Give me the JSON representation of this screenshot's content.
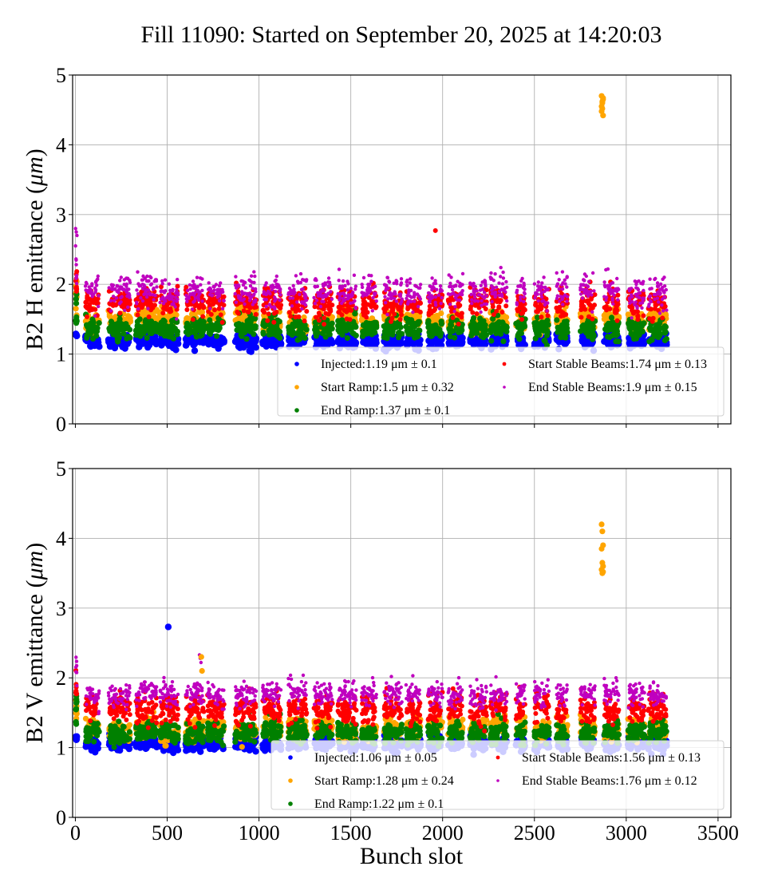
{
  "title": "Fill 11090: Started on September 20, 2025 at 14:20:03",
  "chart_data": [
    {
      "type": "scatter",
      "panel": "top",
      "ylabel": "B2 H emittance (μm)",
      "ylabel_plain": "B2 H emittance (",
      "ylabel_unit": "μm",
      "xlabel": "",
      "xlim": [
        -15,
        3570
      ],
      "ylim": [
        0,
        5
      ],
      "xticks": [
        0,
        500,
        1000,
        1500,
        2000,
        2500,
        3000,
        3500
      ],
      "xtick_labels_shown": false,
      "yticks": [
        0,
        1,
        2,
        3,
        4,
        5
      ],
      "grid": true,
      "legend_placement": "lower-right",
      "legend_columns": 2,
      "series": [
        {
          "name": "Injected",
          "mean": 1.19,
          "std": 0.1,
          "color": "#0000ff",
          "label": "Injected:1.19 μm ± 0.1"
        },
        {
          "name": "Start Ramp",
          "mean": 1.5,
          "std": 0.32,
          "color": "#ffa500",
          "label": "Start Ramp:1.5 μm ± 0.32"
        },
        {
          "name": "End Ramp",
          "mean": 1.37,
          "std": 0.1,
          "color": "#008000",
          "label": "End Ramp:1.37 μm ± 0.1"
        },
        {
          "name": "Start Stable Beams",
          "mean": 1.74,
          "std": 0.13,
          "color": "#ff0000",
          "label": "Start Stable Beams:1.74 μm ± 0.13"
        },
        {
          "name": "End Stable Beams",
          "mean": 1.9,
          "std": 0.15,
          "color": "#bf00bf",
          "label": "End Stable Beams:1.9 μm ± 0.15"
        }
      ],
      "outliers": [
        {
          "series": "Start Ramp",
          "x": 2870,
          "y": [
            4.48,
            4.62,
            4.65,
            4.55,
            4.6,
            4.67,
            4.7,
            4.52,
            4.42
          ]
        },
        {
          "series": "Start Stable Beams",
          "x": 1965,
          "y": [
            2.77
          ]
        },
        {
          "series": "End Stable Beams",
          "x": 5,
          "y": [
            2.8,
            2.75,
            2.7,
            2.55
          ]
        }
      ]
    },
    {
      "type": "scatter",
      "panel": "bottom",
      "ylabel": "B2 V emittance (μm)",
      "ylabel_plain": "B2 V emittance (",
      "ylabel_unit": "μm",
      "xlabel": "Bunch slot",
      "xlim": [
        -15,
        3570
      ],
      "ylim": [
        0,
        5
      ],
      "xticks": [
        0,
        500,
        1000,
        1500,
        2000,
        2500,
        3000,
        3500
      ],
      "xtick_labels": [
        "0",
        "500",
        "1000",
        "1500",
        "2000",
        "2500",
        "3000",
        "3500"
      ],
      "yticks": [
        0,
        1,
        2,
        3,
        4,
        5
      ],
      "grid": true,
      "legend_placement": "lower-right",
      "legend_columns": 2,
      "series": [
        {
          "name": "Injected",
          "mean": 1.06,
          "std": 0.05,
          "color": "#0000ff",
          "label": "Injected:1.06 μm ± 0.05"
        },
        {
          "name": "Start Ramp",
          "mean": 1.28,
          "std": 0.24,
          "color": "#ffa500",
          "label": "Start Ramp:1.28 μm ± 0.24"
        },
        {
          "name": "End Ramp",
          "mean": 1.22,
          "std": 0.1,
          "color": "#008000",
          "label": "End Ramp:1.22 μm ± 0.1"
        },
        {
          "name": "Start Stable Beams",
          "mean": 1.56,
          "std": 0.13,
          "color": "#ff0000",
          "label": "Start Stable Beams:1.56 μm ± 0.13"
        },
        {
          "name": "End Stable Beams",
          "mean": 1.76,
          "std": 0.12,
          "color": "#bf00bf",
          "label": "End Stable Beams:1.76 μm ± 0.12"
        }
      ],
      "outliers": [
        {
          "series": "Start Ramp",
          "x": 2870,
          "y": [
            4.2,
            4.1,
            3.9,
            3.85,
            3.65,
            3.6,
            3.55,
            3.5,
            3.52
          ]
        },
        {
          "series": "Injected",
          "x": 510,
          "y": [
            2.73
          ]
        },
        {
          "series": "End Stable Beams",
          "x": 680,
          "y": [
            2.33,
            2.28,
            2.22
          ]
        },
        {
          "series": "Start Ramp",
          "x": 690,
          "y": [
            2.3,
            2.1
          ]
        }
      ]
    }
  ],
  "bunch_trains_x": [
    [
      55,
      130
    ],
    [
      180,
      300
    ],
    [
      330,
      445
    ],
    [
      460,
      560
    ],
    [
      600,
      700
    ],
    [
      720,
      810
    ],
    [
      870,
      985
    ],
    [
      1020,
      1120
    ],
    [
      1160,
      1260
    ],
    [
      1300,
      1400
    ],
    [
      1430,
      1530
    ],
    [
      1560,
      1640
    ],
    [
      1680,
      1780
    ],
    [
      1800,
      1880
    ],
    [
      1920,
      2000
    ],
    [
      2030,
      2110
    ],
    [
      2150,
      2240
    ],
    [
      2260,
      2350
    ],
    [
      2400,
      2450
    ],
    [
      2500,
      2580
    ],
    [
      2620,
      2680
    ],
    [
      2750,
      2830
    ],
    [
      2880,
      2960
    ],
    [
      3010,
      3100
    ],
    [
      3120,
      3220
    ]
  ]
}
